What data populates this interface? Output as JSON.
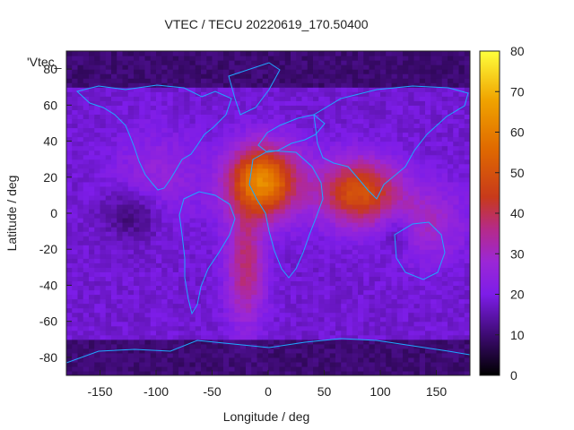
{
  "chart_data": {
    "type": "heatmap",
    "title": "VTEC / TECU 20220619_170.50400",
    "xlabel": "Longitude / deg",
    "ylabel": "Latitude / deg",
    "legend_label": "'Vtec_",
    "xlim": [
      -180,
      180
    ],
    "ylim": [
      -90,
      90
    ],
    "x_ticks": [
      -150,
      -100,
      -50,
      0,
      50,
      100,
      150
    ],
    "y_ticks": [
      -80,
      -60,
      -40,
      -20,
      0,
      20,
      40,
      60,
      80
    ],
    "colorbar": {
      "range": [
        0,
        80
      ],
      "ticks": [
        0,
        10,
        20,
        30,
        40,
        50,
        60,
        70,
        80
      ],
      "palette": "gnuplot pm3d (black-purple-red-orange-yellow)"
    },
    "grid_step_deg": {
      "lon": 5,
      "lat": 2.5
    },
    "vtec_features": [
      {
        "lon": -5,
        "lat": 18,
        "peak": 62,
        "sigma_lon": 22,
        "sigma_lat": 14
      },
      {
        "lon": 80,
        "lat": 12,
        "peak": 50,
        "sigma_lon": 25,
        "sigma_lat": 13
      },
      {
        "lon": -20,
        "lat": -30,
        "peak": 38,
        "sigma_lon": 12,
        "sigma_lat": 22
      },
      {
        "lon": 140,
        "lat": -5,
        "peak": 30,
        "sigma_lon": 25,
        "sigma_lat": 15
      },
      {
        "lon": -100,
        "lat": 20,
        "peak": 26,
        "sigma_lon": 28,
        "sigma_lat": 18
      }
    ],
    "vtec_background": 18
  }
}
